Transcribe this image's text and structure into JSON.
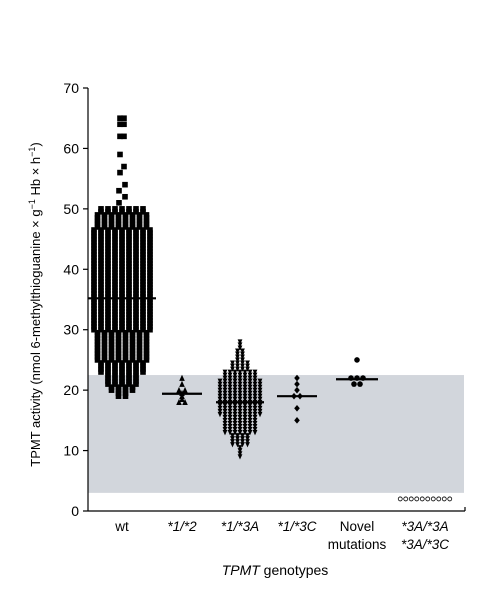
{
  "chart_data": {
    "type": "scatter",
    "subtype": "dot-plot with medians",
    "ylim": [
      0,
      70
    ],
    "yticks": [
      0,
      10,
      20,
      30,
      40,
      50,
      60,
      70
    ],
    "ylabel": {
      "main": "TPMT activity (nmol 6-methylthioguanine × g",
      "sup1": "−1",
      "mid": " Hb × h",
      "sup2": "−1",
      "end": ")"
    },
    "xlabel": {
      "italic": "TPMT",
      "rest": " genotypes"
    },
    "shaded_range": [
      3,
      22.5
    ],
    "shaded_color": "#d2d6dc",
    "marker_color": "#000000",
    "groups": [
      {
        "label": [
          "wt"
        ],
        "italic": false,
        "marker": "square",
        "median": 35.2,
        "min": 19,
        "max": 65,
        "outliers": [
          62,
          62,
          64,
          64,
          65,
          65,
          59,
          57,
          56
        ]
      },
      {
        "label": [
          "*1/*2"
        ],
        "italic": true,
        "marker": "triangle-up",
        "median": 19.4,
        "values": [
          22,
          21,
          20,
          20,
          19.5,
          19,
          18.5,
          18,
          18
        ]
      },
      {
        "label": [
          "*1/*3A"
        ],
        "italic": true,
        "marker": "triangle-down",
        "median": 18,
        "min": 9,
        "max": 28
      },
      {
        "label": [
          "*1/*3C"
        ],
        "italic": true,
        "marker": "diamond",
        "median": 19,
        "values": [
          22,
          21,
          20,
          19,
          19,
          17,
          15
        ]
      },
      {
        "label": [
          "Novel",
          "mutations"
        ],
        "italic": false,
        "marker": "circle",
        "median": 21.8,
        "values": [
          25,
          22,
          22,
          22,
          21,
          21
        ]
      },
      {
        "label": [
          "*3A/*3A",
          "*3A/*3C"
        ],
        "italic": true,
        "marker": "open-circle",
        "values": [
          2,
          2,
          2,
          2,
          2,
          2,
          2,
          2,
          2,
          2
        ]
      }
    ]
  }
}
